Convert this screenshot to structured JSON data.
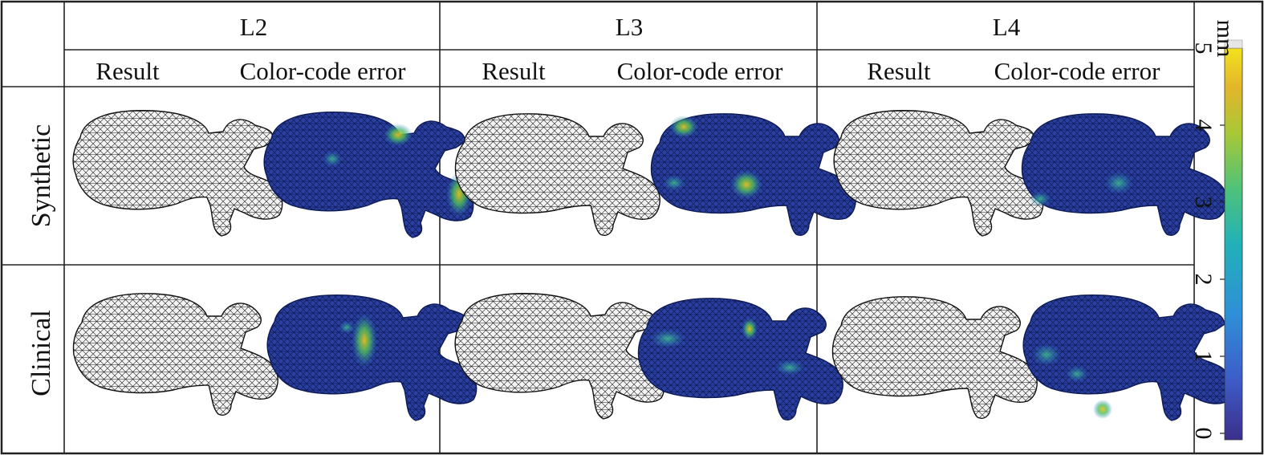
{
  "columns": [
    {
      "label": "L2",
      "result_label": "Result",
      "error_label": "Color-code error"
    },
    {
      "label": "L3",
      "result_label": "Result",
      "error_label": "Color-code error"
    },
    {
      "label": "L4",
      "result_label": "Result",
      "error_label": "Color-code error"
    }
  ],
  "rows": [
    {
      "label": "Synthetic"
    },
    {
      "label": "Clinical"
    }
  ],
  "colorbar": {
    "unit": "mm",
    "ticks": [
      "0",
      "1",
      "2",
      "3",
      "4",
      "5"
    ],
    "range": [
      0,
      5
    ],
    "colors": [
      "#3b2f8a",
      "#3d5bc8",
      "#2f8fd8",
      "#21b1b8",
      "#4fc27a",
      "#a6c837",
      "#e3b62a",
      "#f2e21e"
    ]
  },
  "mesh_colors": {
    "result_fill": "#f2f2f2",
    "result_line": "#222222",
    "error_base": "#22348f",
    "error_mid": "#2f7fd0",
    "error_hot": "#e0c01f",
    "error_warm": "#38b060"
  }
}
